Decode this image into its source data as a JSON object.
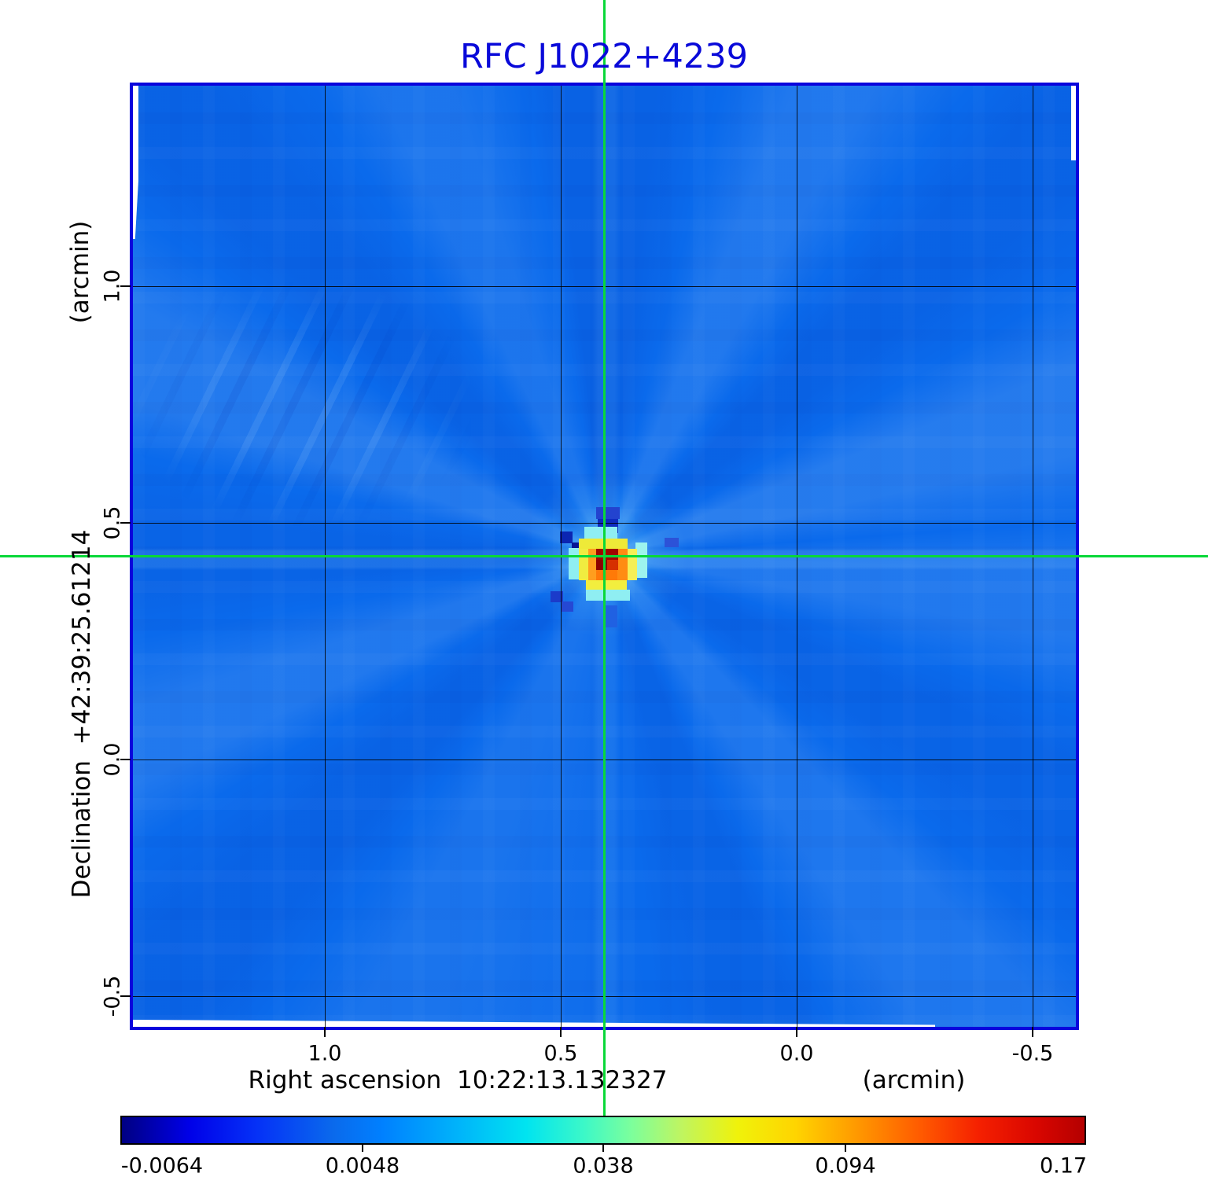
{
  "title": {
    "text": "RFC J1022+4239",
    "color": "#0909d9"
  },
  "chart_data": {
    "type": "heatmap",
    "title": "RFC J1022+4239",
    "xlabel": "Right ascension  10:22:13.132327",
    "xunit": "(arcmin)",
    "ylabel": "Declination  +42:39:25.61214",
    "yunit": "(arcmin)",
    "x_ticks": [
      "1.0",
      "0.5",
      "0.0",
      "-0.5"
    ],
    "y_ticks": [
      "1.0",
      "0.5",
      "0.0",
      "-0.5"
    ],
    "x_range_arcmin": [
      1.41,
      -0.6
    ],
    "y_range_arcmin": [
      1.43,
      -0.57
    ],
    "grid": true,
    "colormap": "jet",
    "colorbar_ticks": [
      "-0.0064",
      "0.0048",
      "0.038",
      "0.094",
      "0.17"
    ],
    "colorbar_range": [
      -0.0064,
      0.17
    ],
    "background_level": 0.0048,
    "peak_value": 0.17,
    "crosshair": {
      "x_arcmin": 0.41,
      "y_arcmin": 0.43,
      "color": "#09d838"
    },
    "source_map": [
      [
        589,
        536,
        30,
        15,
        "#2343cf"
      ],
      [
        591,
        551,
        26,
        18,
        "#0e2bc0"
      ],
      [
        543,
        567,
        16,
        15,
        "#0b25b2"
      ],
      [
        558,
        581,
        17,
        16,
        "#061795"
      ],
      [
        676,
        575,
        18,
        12,
        "#2c52d8"
      ],
      [
        531,
        643,
        16,
        14,
        "#1b3bca"
      ],
      [
        545,
        656,
        15,
        13,
        "#2548d4"
      ],
      [
        601,
        661,
        15,
        28,
        "#2061e2"
      ],
      [
        574,
        561,
        42,
        15,
        "#8feef2"
      ],
      [
        554,
        588,
        14,
        40,
        "#8feef2"
      ],
      [
        639,
        581,
        15,
        45,
        "#9df3ee"
      ],
      [
        576,
        641,
        56,
        14,
        "#8feef2"
      ],
      [
        567,
        576,
        62,
        13,
        "#eeea38"
      ],
      [
        567,
        589,
        12,
        40,
        "#f0ec40"
      ],
      [
        628,
        589,
        13,
        40,
        "#f5ef55"
      ],
      [
        576,
        628,
        52,
        13,
        "#f2ee3e"
      ],
      [
        579,
        589,
        10,
        40,
        "#ff9e1e"
      ],
      [
        616,
        589,
        13,
        40,
        "#ff8c12"
      ],
      [
        589,
        616,
        27,
        13,
        "#ff7a08"
      ],
      [
        589,
        589,
        28,
        14,
        "#9e0500"
      ],
      [
        589,
        603,
        14,
        13,
        "#8c0000"
      ],
      [
        603,
        603,
        14,
        13,
        "#d63000"
      ]
    ]
  }
}
